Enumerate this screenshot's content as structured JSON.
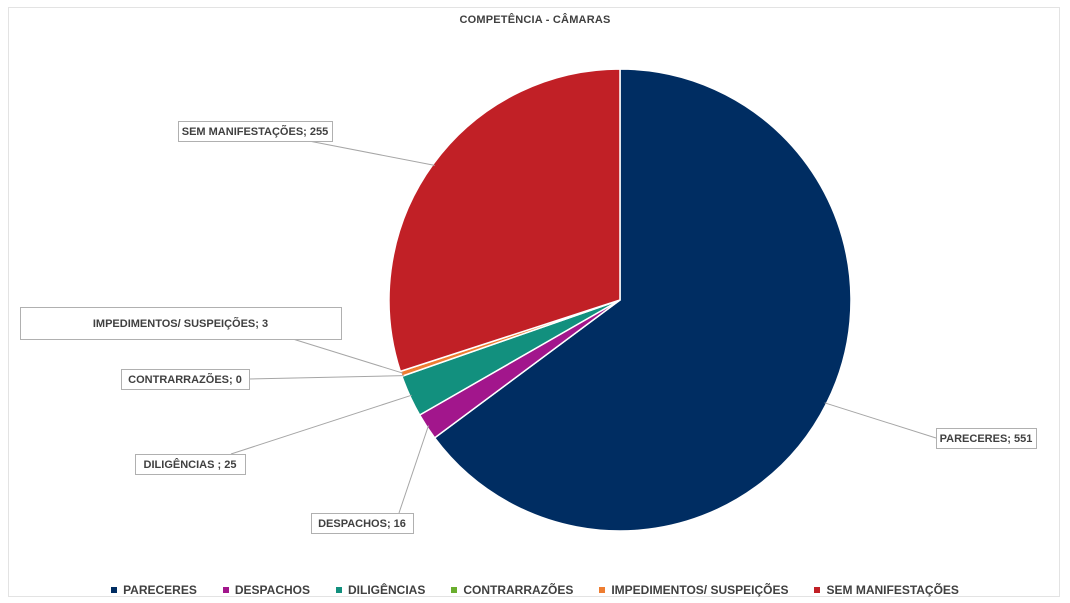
{
  "chart_data": {
    "type": "pie",
    "title": "COMPETÊNCIA - CÂMARAS",
    "categories": [
      "PARECERES",
      "DESPACHOS",
      "DILIGÊNCIAS",
      "CONTRARRAZÕES",
      "IMPEDIMENTOS/ SUSPEIÇÕES",
      "SEM MANIFESTAÇÕES"
    ],
    "values": [
      551,
      16,
      25,
      0,
      3,
      255
    ],
    "data_labels": [
      "PARECERES; 551",
      "DESPACHOS; 16",
      "DILIGÊNCIAS ; 25",
      "CONTRARRAZÕES; 0",
      "IMPEDIMENTOS/ SUSPEIÇÕES; 3",
      "SEM MANIFESTAÇÕES; 255"
    ],
    "colors": [
      "#002D62",
      "#A2168C",
      "#12907E",
      "#6AAE2E",
      "#EE7D31",
      "#C12026"
    ],
    "legend": {
      "position": "bottom",
      "entries": [
        "PARECERES",
        "DESPACHOS",
        "DILIGÊNCIAS",
        "CONTRARRAZÕES",
        "IMPEDIMENTOS/ SUSPEIÇÕES",
        "SEM MANIFESTAÇÕES"
      ]
    }
  }
}
